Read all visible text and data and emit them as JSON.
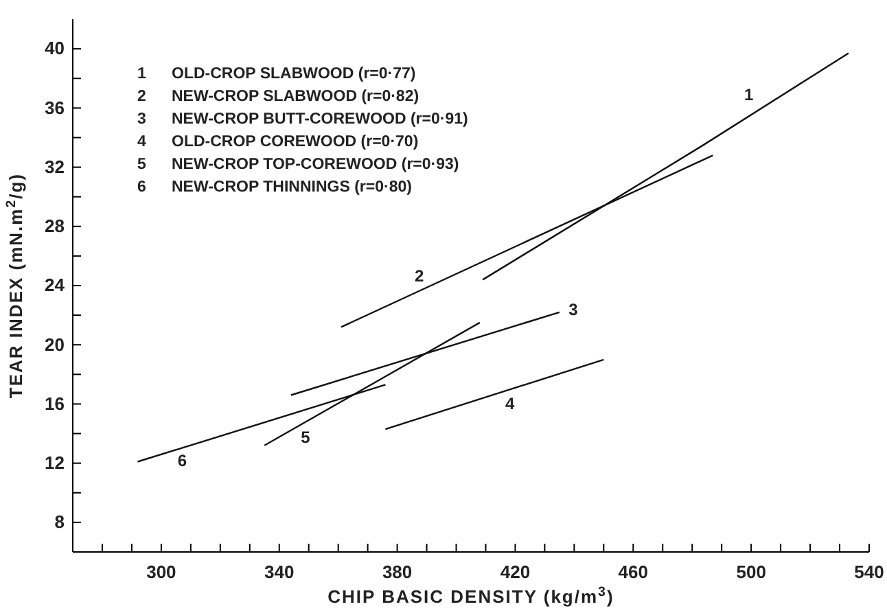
{
  "chart_data": {
    "type": "line",
    "xlabel": "CHIP BASIC DENSITY (kg/m$^{3}$)",
    "ylabel": "TEAR INDEX (mN.m$^{2}$/g)",
    "xlim": [
      270,
      540
    ],
    "ylim": [
      6,
      42
    ],
    "xticks": [
      {
        "value": 280,
        "label": null
      },
      {
        "value": 290,
        "label": null
      },
      300,
      {
        "value": 310,
        "label": null
      },
      {
        "value": 320,
        "label": null
      },
      {
        "value": 330,
        "label": null
      },
      340,
      {
        "value": 350,
        "label": null
      },
      {
        "value": 360,
        "label": null
      },
      {
        "value": 370,
        "label": null
      },
      380,
      {
        "value": 390,
        "label": null
      },
      {
        "value": 400,
        "label": null
      },
      {
        "value": 410,
        "label": null
      },
      420,
      {
        "value": 430,
        "label": null
      },
      {
        "value": 440,
        "label": null
      },
      {
        "value": 450,
        "label": null
      },
      460,
      {
        "value": 470,
        "label": null
      },
      {
        "value": 480,
        "label": null
      },
      {
        "value": 490,
        "label": null
      },
      500,
      {
        "value": 510,
        "label": null
      },
      {
        "value": 520,
        "label": null
      },
      {
        "value": 530,
        "label": null
      },
      540
    ],
    "yticks": [
      8,
      {
        "value": 10,
        "label": null
      },
      12,
      {
        "value": 14,
        "label": null
      },
      16,
      {
        "value": 18,
        "label": null
      },
      20,
      {
        "value": 22,
        "label": null
      },
      24,
      {
        "value": 26,
        "label": null
      },
      28,
      {
        "value": 30,
        "label": null
      },
      32,
      {
        "value": 34,
        "label": null
      },
      36,
      {
        "value": 38,
        "label": null
      },
      40
    ],
    "grid": false,
    "legend": false,
    "marker": "none",
    "line_style": "solid",
    "series": [
      {
        "name": "1",
        "color": "#111111",
        "x": [
          409,
          483,
          533
        ],
        "values": [
          24.4,
          33.4,
          39.7
        ]
      },
      {
        "name": "2",
        "color": "#111111",
        "x": [
          361,
          487
        ],
        "values": [
          21.2,
          32.8
        ]
      },
      {
        "name": "3",
        "color": "#111111",
        "x": [
          344,
          435
        ],
        "values": [
          16.6,
          22.2
        ]
      },
      {
        "name": "4",
        "color": "#111111",
        "x": [
          376,
          450
        ],
        "values": [
          14.3,
          19.0
        ]
      },
      {
        "name": "5",
        "color": "#111111",
        "x": [
          335,
          408
        ],
        "values": [
          13.2,
          21.5
        ]
      },
      {
        "name": "6",
        "color": "#111111",
        "x": [
          292,
          376
        ],
        "values": [
          12.1,
          17.3
        ]
      }
    ],
    "annotations": [
      "1 OLD-CROP SLABWOOD (r=0·77)",
      "2 NEW-CROP SLABWOOD (r=0·82)",
      "3 NEW-CROP BUTT-COREWOOD (r=0·91)",
      "4 OLD-CROP COREWOOD (r=0·70)",
      "5 NEW-CROP TOP-COREWOOD (r=0·93)",
      "6 NEW-CROP THINNINGS (r=0·80)"
    ]
  }
}
